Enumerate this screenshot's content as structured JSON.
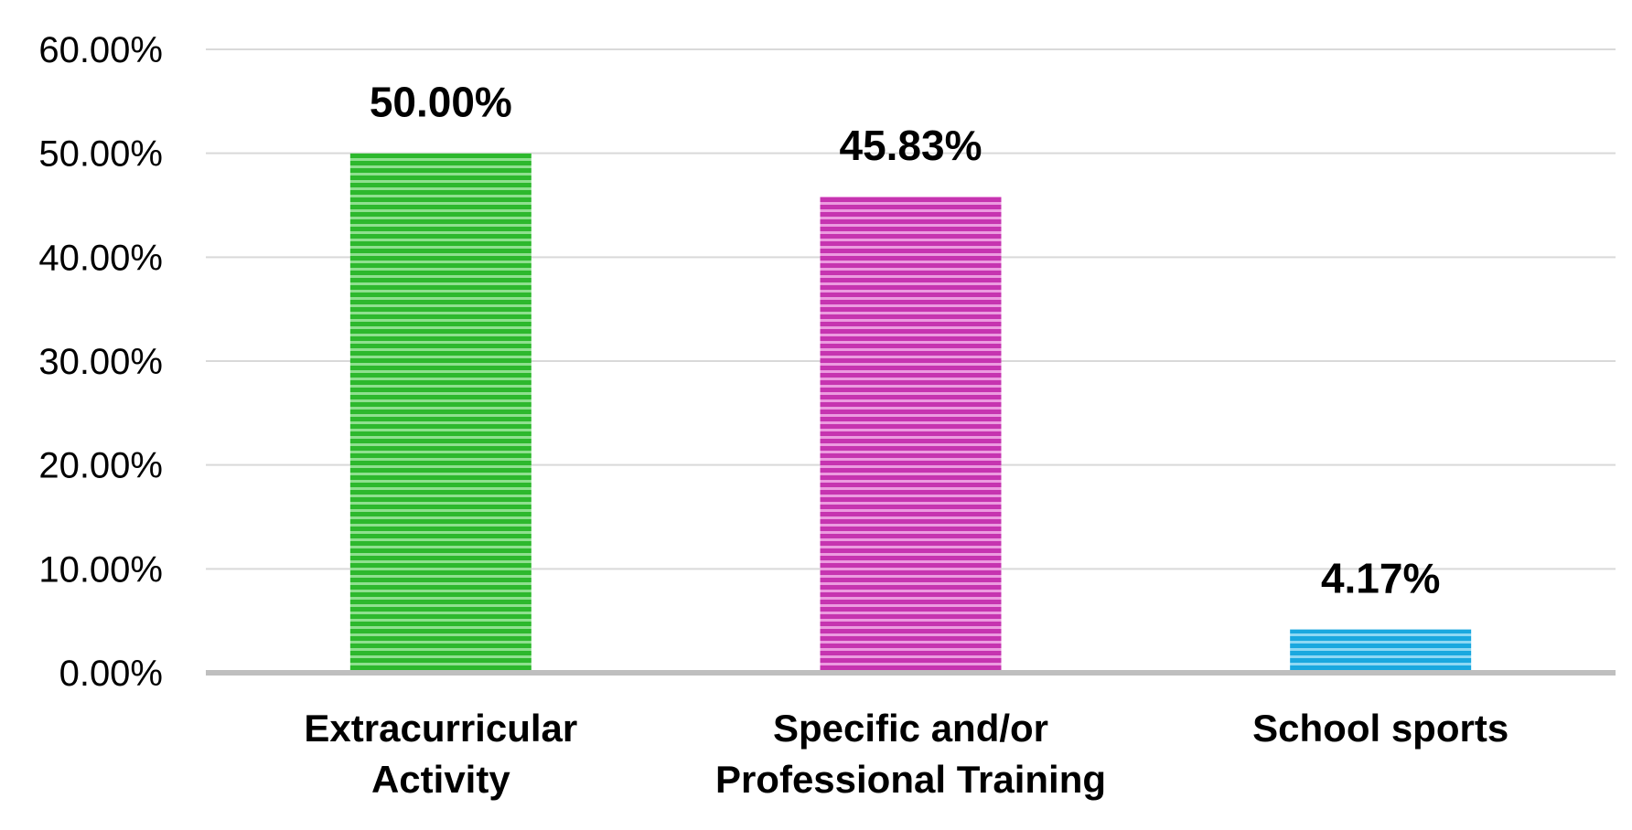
{
  "chart_data": {
    "type": "bar",
    "categories": [
      [
        "Extracurricular",
        "Activity"
      ],
      [
        "Specific and/or",
        "Professional Training"
      ],
      [
        "School sports"
      ]
    ],
    "values": [
      50.0,
      45.83,
      4.17
    ],
    "data_labels": [
      "50.00%",
      "45.83%",
      "4.17%"
    ],
    "ylim": [
      0,
      60
    ],
    "yticks": [
      0,
      10,
      20,
      30,
      40,
      50,
      60
    ],
    "ytick_labels": [
      "0.00%",
      "10.00%",
      "20.00%",
      "30.00%",
      "40.00%",
      "50.00%",
      "60.00%"
    ],
    "grid": true,
    "legend": "none",
    "bar_colors": [
      "#2db82d",
      "#c634b0",
      "#1aa8df"
    ],
    "title": "",
    "xlabel": "",
    "ylabel": ""
  }
}
